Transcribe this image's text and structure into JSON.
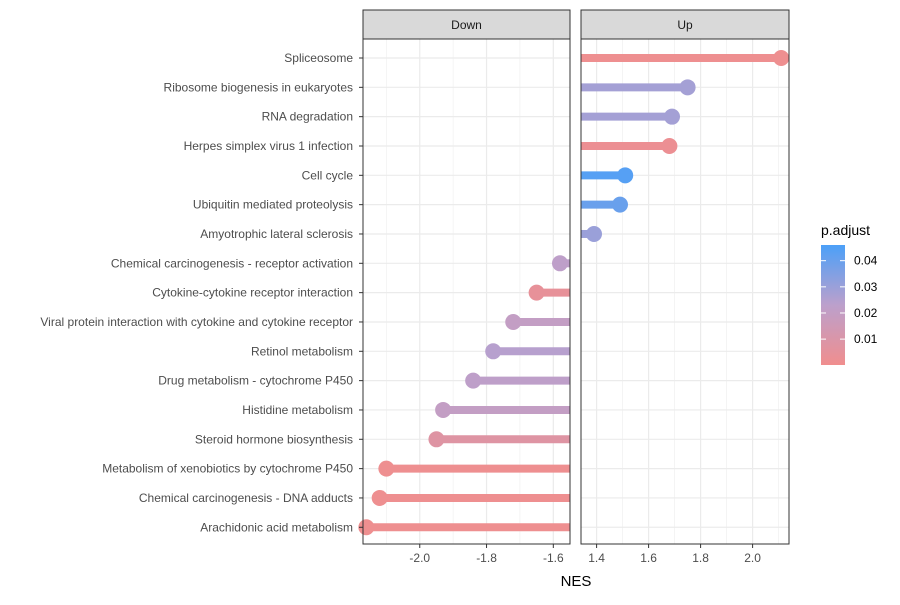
{
  "chart_data": {
    "type": "lollipop",
    "xlabel": "NES",
    "panels": [
      {
        "name": "Down",
        "xlim": [
          -2.17,
          -1.55
        ],
        "ticks": [
          -2.0,
          -1.8,
          -1.6
        ],
        "tick_labels": [
          "-2.0",
          "-1.8",
          "-1.6"
        ]
      },
      {
        "name": "Up",
        "xlim": [
          1.34,
          2.14
        ],
        "ticks": [
          1.4,
          1.6,
          1.8,
          2.0
        ],
        "tick_labels": [
          "1.4",
          "1.6",
          "1.8",
          "2.0"
        ]
      }
    ],
    "categories": [
      "Spliceosome",
      "Ribosome biogenesis in eukaryotes",
      "RNA degradation",
      "Herpes simplex virus 1 infection",
      "Cell cycle",
      "Ubiquitin mediated proteolysis",
      "Amyotrophic lateral sclerosis",
      "Chemical carcinogenesis - receptor activation",
      "Cytokine-cytokine receptor interaction",
      "Viral protein interaction with cytokine and cytokine receptor",
      "Retinol metabolism",
      "Drug metabolism - cytochrome P450",
      "Histidine metabolism",
      "Steroid hormone biosynthesis",
      "Metabolism of xenobiotics by cytochrome P450",
      "Chemical carcinogenesis - DNA adducts",
      "Arachidonic acid metabolism"
    ],
    "points": [
      {
        "term": "Spliceosome",
        "panel": "Up",
        "nes": 2.11,
        "p_adjust": 0.001
      },
      {
        "term": "Ribosome biogenesis in eukaryotes",
        "panel": "Up",
        "nes": 1.75,
        "p_adjust": 0.028
      },
      {
        "term": "RNA degradation",
        "panel": "Up",
        "nes": 1.69,
        "p_adjust": 0.028
      },
      {
        "term": "Herpes simplex virus 1 infection",
        "panel": "Up",
        "nes": 1.68,
        "p_adjust": 0.002
      },
      {
        "term": "Cell cycle",
        "panel": "Up",
        "nes": 1.51,
        "p_adjust": 0.044
      },
      {
        "term": "Ubiquitin mediated proteolysis",
        "panel": "Up",
        "nes": 1.49,
        "p_adjust": 0.04
      },
      {
        "term": "Amyotrophic lateral sclerosis",
        "panel": "Up",
        "nes": 1.39,
        "p_adjust": 0.03
      },
      {
        "term": "Chemical carcinogenesis - receptor activation",
        "panel": "Down",
        "nes": -1.58,
        "p_adjust": 0.022
      },
      {
        "term": "Cytokine-cytokine receptor interaction",
        "panel": "Down",
        "nes": -1.65,
        "p_adjust": 0.004
      },
      {
        "term": "Viral protein interaction with cytokine and cytokine receptor",
        "panel": "Down",
        "nes": -1.72,
        "p_adjust": 0.02
      },
      {
        "term": "Retinol metabolism",
        "panel": "Down",
        "nes": -1.78,
        "p_adjust": 0.024
      },
      {
        "term": "Drug metabolism - cytochrome P450",
        "panel": "Down",
        "nes": -1.84,
        "p_adjust": 0.022
      },
      {
        "term": "Histidine metabolism",
        "panel": "Down",
        "nes": -1.93,
        "p_adjust": 0.02
      },
      {
        "term": "Steroid hormone biosynthesis",
        "panel": "Down",
        "nes": -1.95,
        "p_adjust": 0.008
      },
      {
        "term": "Metabolism of xenobiotics by cytochrome P450",
        "panel": "Down",
        "nes": -2.1,
        "p_adjust": 0.001
      },
      {
        "term": "Chemical carcinogenesis - DNA adducts",
        "panel": "Down",
        "nes": -2.12,
        "p_adjust": 0.001
      },
      {
        "term": "Arachidonic acid metabolism",
        "panel": "Down",
        "nes": -2.16,
        "p_adjust": 0.001
      }
    ],
    "legend": {
      "title": "p.adjust",
      "position": "right",
      "range": [
        0.0001,
        0.046
      ],
      "breaks": [
        0.01,
        0.02,
        0.03,
        0.04
      ],
      "break_labels": [
        "0.01",
        "0.02",
        "0.03",
        "0.04"
      ],
      "color_low": "#F08E8E",
      "color_mid": "#BCA0CC",
      "color_high": "#4CA0F8"
    },
    "grid": true,
    "strip_fill": "#D9D9D9"
  }
}
